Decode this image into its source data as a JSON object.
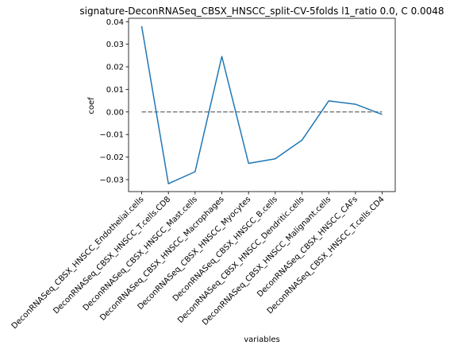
{
  "chart_data": {
    "type": "line",
    "title": "signature-DeconRNASeq_CBSX_HNSCC_split-CV-5folds l1_ratio 0.0, C 0.0048",
    "xlabel": "variables",
    "ylabel": "coef",
    "categories": [
      "DeconRNASeq_CBSX_HNSCC_Endothelial.cells",
      "DeconRNASeq_CBSX_HNSCC_T.cells.CD8",
      "DeconRNASeq_CBSX_HNSCC_Mast.cells",
      "DeconRNASeq_CBSX_HNSCC_Macrophages",
      "DeconRNASeq_CBSX_HNSCC_Myocytes",
      "DeconRNASeq_CBSX_HNSCC_B.cells",
      "DeconRNASeq_CBSX_HNSCC_Dendritic.cells",
      "DeconRNASeq_CBSX_HNSCC_Malignant.cells",
      "DeconRNASeq_CBSX_HNSCC_CAFs",
      "DeconRNASeq_CBSX_HNSCC_T.cells.CD4"
    ],
    "series": [
      {
        "values": [
          0.038,
          -0.0318,
          -0.0265,
          0.0246,
          -0.0228,
          -0.0208,
          -0.0125,
          0.0049,
          0.0034,
          -0.0011
        ],
        "color": "#1f77b4"
      }
    ],
    "reference_line": {
      "y": 0.0,
      "style": "dashed",
      "color": "#808080"
    },
    "ylim": [
      -0.0353,
      0.0415
    ],
    "yticks": [
      -0.03,
      -0.02,
      -0.01,
      0.0,
      0.01,
      0.02,
      0.03,
      0.04
    ],
    "ytick_labels": [
      "−0.03",
      "−0.02",
      "−0.01",
      "0.00",
      "0.01",
      "0.02",
      "0.03",
      "0.04"
    ],
    "grid": false
  }
}
